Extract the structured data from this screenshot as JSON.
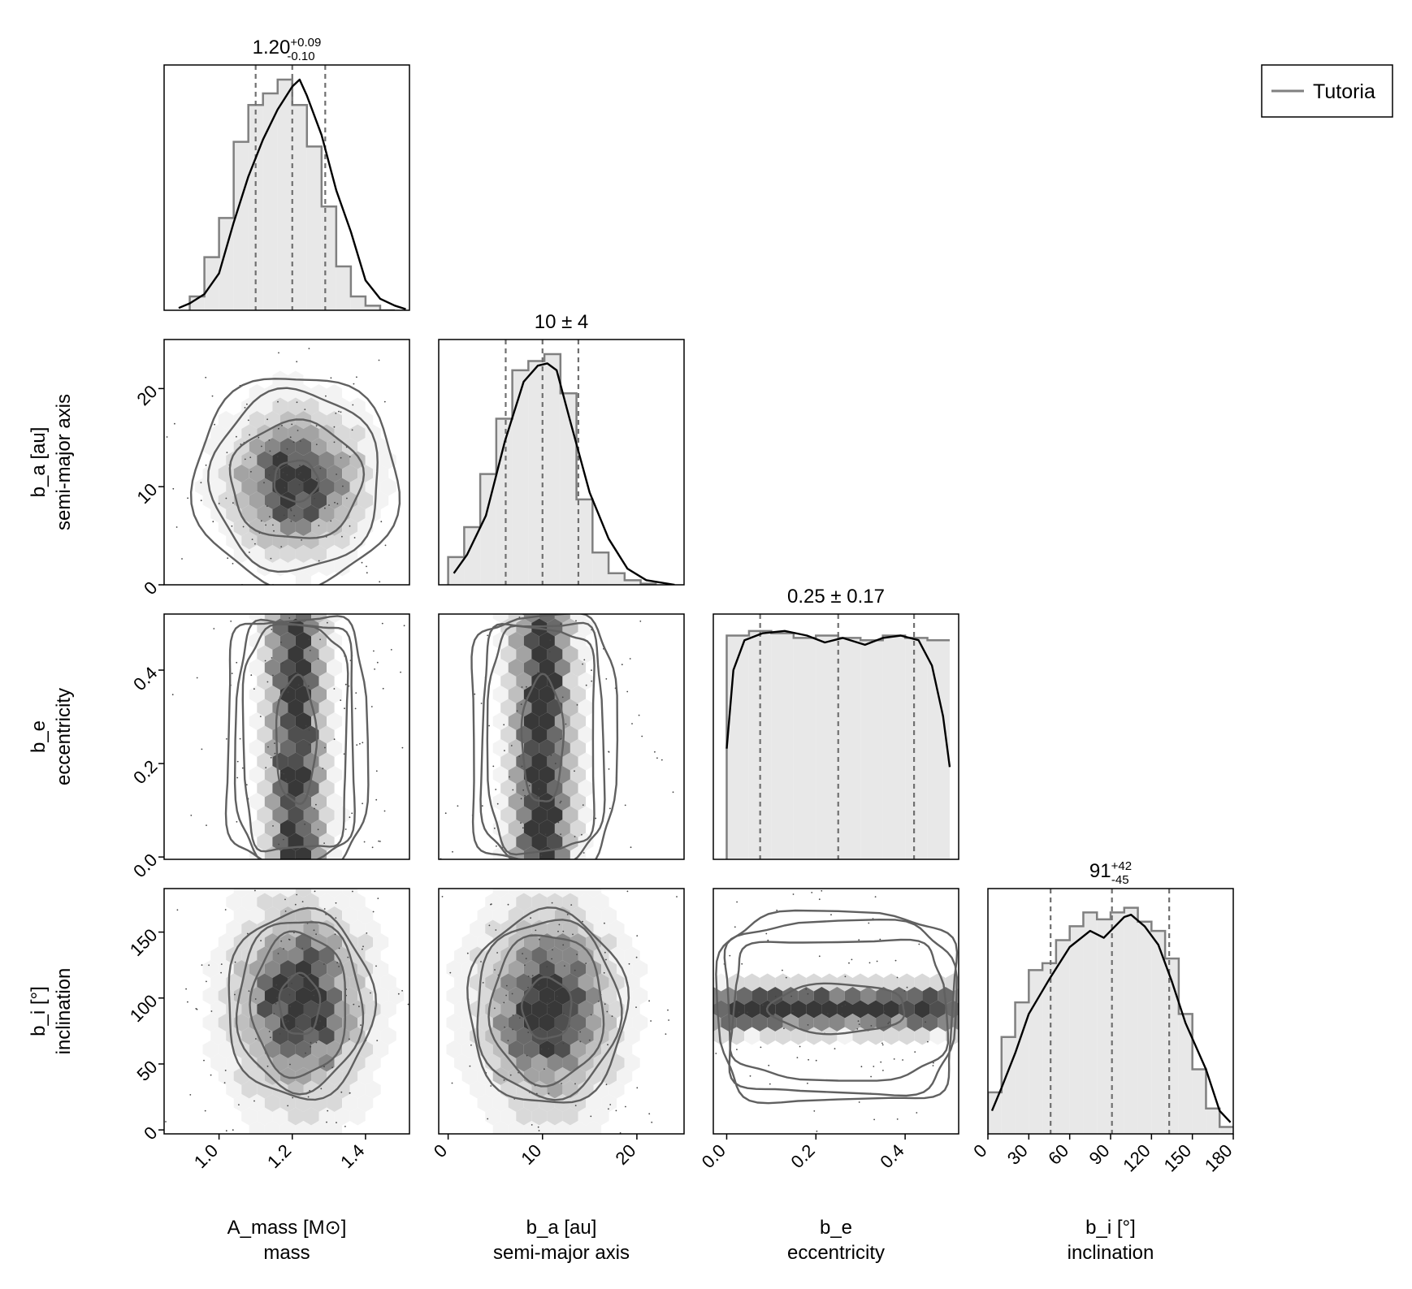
{
  "colors": {
    "frame": "#000000",
    "histogram_fill": "#e8e8e8",
    "histogram_step": "#808080",
    "kde_line": "#000000",
    "quantile_line": "#707070",
    "hexbin": [
      "#f3f3f3",
      "#d9d9d9",
      "#bfbfbf",
      "#a3a3a3",
      "#878787",
      "#6a6a6a",
      "#4f4f4f",
      "#383838"
    ],
    "contour": "#606060",
    "legend_line": "#808080"
  },
  "legend": {
    "label": "Tutoria",
    "placement": "top-right"
  },
  "chart_data": {
    "type": "corner",
    "parameters": [
      {
        "key": "A_mass",
        "label": "A_mass [M⊙]",
        "sublabel": "mass",
        "range": [
          0.85,
          1.52
        ],
        "ticks": [
          1.0,
          1.2,
          1.4
        ],
        "tick_labels": [
          "1.0",
          "1.2",
          "1.4"
        ]
      },
      {
        "key": "b_a",
        "label": "b_a [au]",
        "sublabel": "semi-major axis",
        "range": [
          -1,
          25
        ],
        "ticks": [
          0,
          10,
          20
        ],
        "tick_labels": [
          "0",
          "10",
          "20"
        ]
      },
      {
        "key": "b_e",
        "label": "b_e",
        "sublabel": "eccentricity",
        "range": [
          -0.03,
          0.52
        ],
        "ticks": [
          0.0,
          0.2,
          0.4
        ],
        "tick_labels": [
          "0.0",
          "0.2",
          "0.4"
        ]
      },
      {
        "key": "b_i",
        "label": "b_i [°]",
        "sublabel": "inclination",
        "range": [
          0,
          180
        ],
        "ticks": [
          0,
          30,
          60,
          90,
          120,
          150,
          180
        ],
        "tick_labels": [
          "0",
          "30",
          "60",
          "90",
          "120",
          "150",
          "180"
        ]
      }
    ],
    "row_axis_ticks": [
      null,
      {
        "ticks": [
          0,
          10,
          20
        ],
        "tick_labels": [
          "0",
          "10",
          "20"
        ],
        "range": [
          0,
          25
        ]
      },
      {
        "ticks": [
          0.0,
          0.2,
          0.4
        ],
        "tick_labels": [
          "0.0",
          "0.2",
          "0.4"
        ],
        "range": [
          -0.005,
          0.52
        ]
      },
      {
        "ticks": [
          0,
          50,
          100,
          150
        ],
        "tick_labels": [
          "0",
          "50",
          "100",
          "150"
        ],
        "range": [
          -3,
          183
        ]
      }
    ],
    "diagonal": [
      {
        "title_main": "1.20",
        "title_sup": "+0.09",
        "title_sub": "-0.10",
        "quantiles": [
          1.1,
          1.2,
          1.29
        ],
        "bin_edges": [
          0.92,
          0.96,
          1.0,
          1.04,
          1.08,
          1.12,
          1.16,
          1.2,
          1.24,
          1.28,
          1.32,
          1.36,
          1.4,
          1.44,
          1.48
        ],
        "counts": [
          0.06,
          0.23,
          0.4,
          0.73,
          0.89,
          0.94,
          1.0,
          0.89,
          0.71,
          0.45,
          0.19,
          0.06,
          0.02,
          0.0
        ],
        "kde": [
          [
            0.89,
            0.01
          ],
          [
            0.92,
            0.03
          ],
          [
            0.96,
            0.07
          ],
          [
            1.0,
            0.16
          ],
          [
            1.04,
            0.38
          ],
          [
            1.08,
            0.58
          ],
          [
            1.12,
            0.74
          ],
          [
            1.16,
            0.87
          ],
          [
            1.2,
            0.97
          ],
          [
            1.22,
            1.0
          ],
          [
            1.24,
            0.93
          ],
          [
            1.28,
            0.76
          ],
          [
            1.32,
            0.52
          ],
          [
            1.36,
            0.34
          ],
          [
            1.4,
            0.13
          ],
          [
            1.44,
            0.05
          ],
          [
            1.48,
            0.02
          ],
          [
            1.51,
            0.005
          ]
        ]
      },
      {
        "title_main": "10 ± 4",
        "quantiles": [
          6.1,
          10.0,
          13.8
        ],
        "bin_edges": [
          0,
          1.7,
          3.4,
          5.1,
          6.8,
          8.5,
          10.2,
          11.9,
          13.6,
          15.3,
          17.0,
          18.7,
          20.4,
          22.1
        ],
        "counts": [
          0.12,
          0.25,
          0.48,
          0.72,
          0.93,
          0.97,
          1.0,
          0.83,
          0.37,
          0.14,
          0.05,
          0.02,
          0.005
        ],
        "kde": [
          [
            0.6,
            0.05
          ],
          [
            2,
            0.13
          ],
          [
            4,
            0.3
          ],
          [
            6,
            0.62
          ],
          [
            8,
            0.88
          ],
          [
            9.5,
            0.95
          ],
          [
            10.5,
            0.96
          ],
          [
            11.5,
            0.93
          ],
          [
            13,
            0.7
          ],
          [
            15,
            0.4
          ],
          [
            17,
            0.2
          ],
          [
            19,
            0.07
          ],
          [
            21,
            0.02
          ],
          [
            24,
            0.0
          ]
        ]
      },
      {
        "title_main": "0.25 ± 0.17",
        "quantiles": [
          0.075,
          0.25,
          0.42
        ],
        "bin_edges": [
          0.0,
          0.05,
          0.1,
          0.15,
          0.2,
          0.25,
          0.3,
          0.35,
          0.4,
          0.45,
          0.5
        ],
        "counts": [
          0.97,
          0.99,
          0.98,
          0.96,
          0.97,
          0.96,
          0.95,
          0.97,
          0.96,
          0.95
        ],
        "kde": [
          [
            0.0,
            0.48
          ],
          [
            0.015,
            0.82
          ],
          [
            0.04,
            0.95
          ],
          [
            0.08,
            0.98
          ],
          [
            0.13,
            0.99
          ],
          [
            0.18,
            0.97
          ],
          [
            0.22,
            0.94
          ],
          [
            0.26,
            0.96
          ],
          [
            0.31,
            0.93
          ],
          [
            0.35,
            0.96
          ],
          [
            0.39,
            0.97
          ],
          [
            0.43,
            0.95
          ],
          [
            0.46,
            0.84
          ],
          [
            0.485,
            0.62
          ],
          [
            0.5,
            0.4
          ]
        ]
      },
      {
        "title_main": "91",
        "title_sup": "+42",
        "title_sub": "-45",
        "quantiles": [
          46,
          91,
          133
        ],
        "bin_edges": [
          0,
          10,
          20,
          30,
          40,
          50,
          60,
          70,
          80,
          90,
          100,
          110,
          120,
          130,
          140,
          150,
          160,
          170,
          180
        ],
        "counts": [
          0.18,
          0.42,
          0.57,
          0.71,
          0.74,
          0.84,
          0.9,
          0.96,
          0.93,
          0.96,
          0.98,
          0.92,
          0.88,
          0.76,
          0.52,
          0.28,
          0.11,
          0.03
        ],
        "kde": [
          [
            3,
            0.1
          ],
          [
            10,
            0.2
          ],
          [
            20,
            0.35
          ],
          [
            30,
            0.52
          ],
          [
            45,
            0.67
          ],
          [
            60,
            0.81
          ],
          [
            75,
            0.88
          ],
          [
            85,
            0.85
          ],
          [
            100,
            0.94
          ],
          [
            105,
            0.95
          ],
          [
            115,
            0.9
          ],
          [
            125,
            0.82
          ],
          [
            135,
            0.66
          ],
          [
            145,
            0.48
          ],
          [
            160,
            0.28
          ],
          [
            170,
            0.1
          ],
          [
            178,
            0.05
          ]
        ]
      }
    ],
    "pairs": [
      {
        "row": 1,
        "col": 0,
        "center": [
          1.21,
          10.6
        ],
        "sigma": [
          0.1,
          4.0
        ],
        "levels": [
          [
            0.6,
            0.52
          ],
          [
            1.8,
            1.5
          ],
          [
            2.3,
            2.3
          ],
          [
            2.8,
            2.7
          ]
        ]
      },
      {
        "row": 2,
        "col": 0,
        "center": [
          1.21,
          0.25
        ],
        "sigma": [
          0.1,
          0.17
        ],
        "levels": [
          [
            0.55,
            0.8
          ],
          [
            1.4,
            1.4
          ],
          [
            1.6,
            1.5
          ],
          [
            1.9,
            1.55
          ]
        ]
      },
      {
        "row": 2,
        "col": 1,
        "center": [
          10.0,
          0.25
        ],
        "sigma": [
          4.0,
          0.17
        ],
        "levels": [
          [
            0.55,
            0.8
          ],
          [
            1.4,
            1.4
          ],
          [
            1.6,
            1.5
          ],
          [
            1.9,
            1.55
          ]
        ]
      },
      {
        "row": 3,
        "col": 0,
        "center": [
          1.22,
          95
        ],
        "sigma": [
          0.1,
          42
        ],
        "levels": [
          [
            0.55,
            0.55
          ],
          [
            1.3,
            1.3
          ],
          [
            1.7,
            1.55
          ],
          [
            2.0,
            1.7
          ]
        ]
      },
      {
        "row": 3,
        "col": 1,
        "center": [
          10.5,
          92
        ],
        "sigma": [
          4.0,
          42
        ],
        "levels": [
          [
            0.65,
            0.55
          ],
          [
            1.5,
            1.35
          ],
          [
            1.9,
            1.6
          ],
          [
            2.1,
            1.75
          ]
        ]
      },
      {
        "row": 3,
        "col": 2,
        "center": [
          0.25,
          92
        ],
        "sigma": [
          0.17,
          42
        ],
        "levels": [
          [
            0.9,
            0.45
          ],
          [
            1.4,
            1.25
          ],
          [
            1.5,
            1.55
          ],
          [
            1.55,
            1.7
          ]
        ]
      }
    ]
  }
}
